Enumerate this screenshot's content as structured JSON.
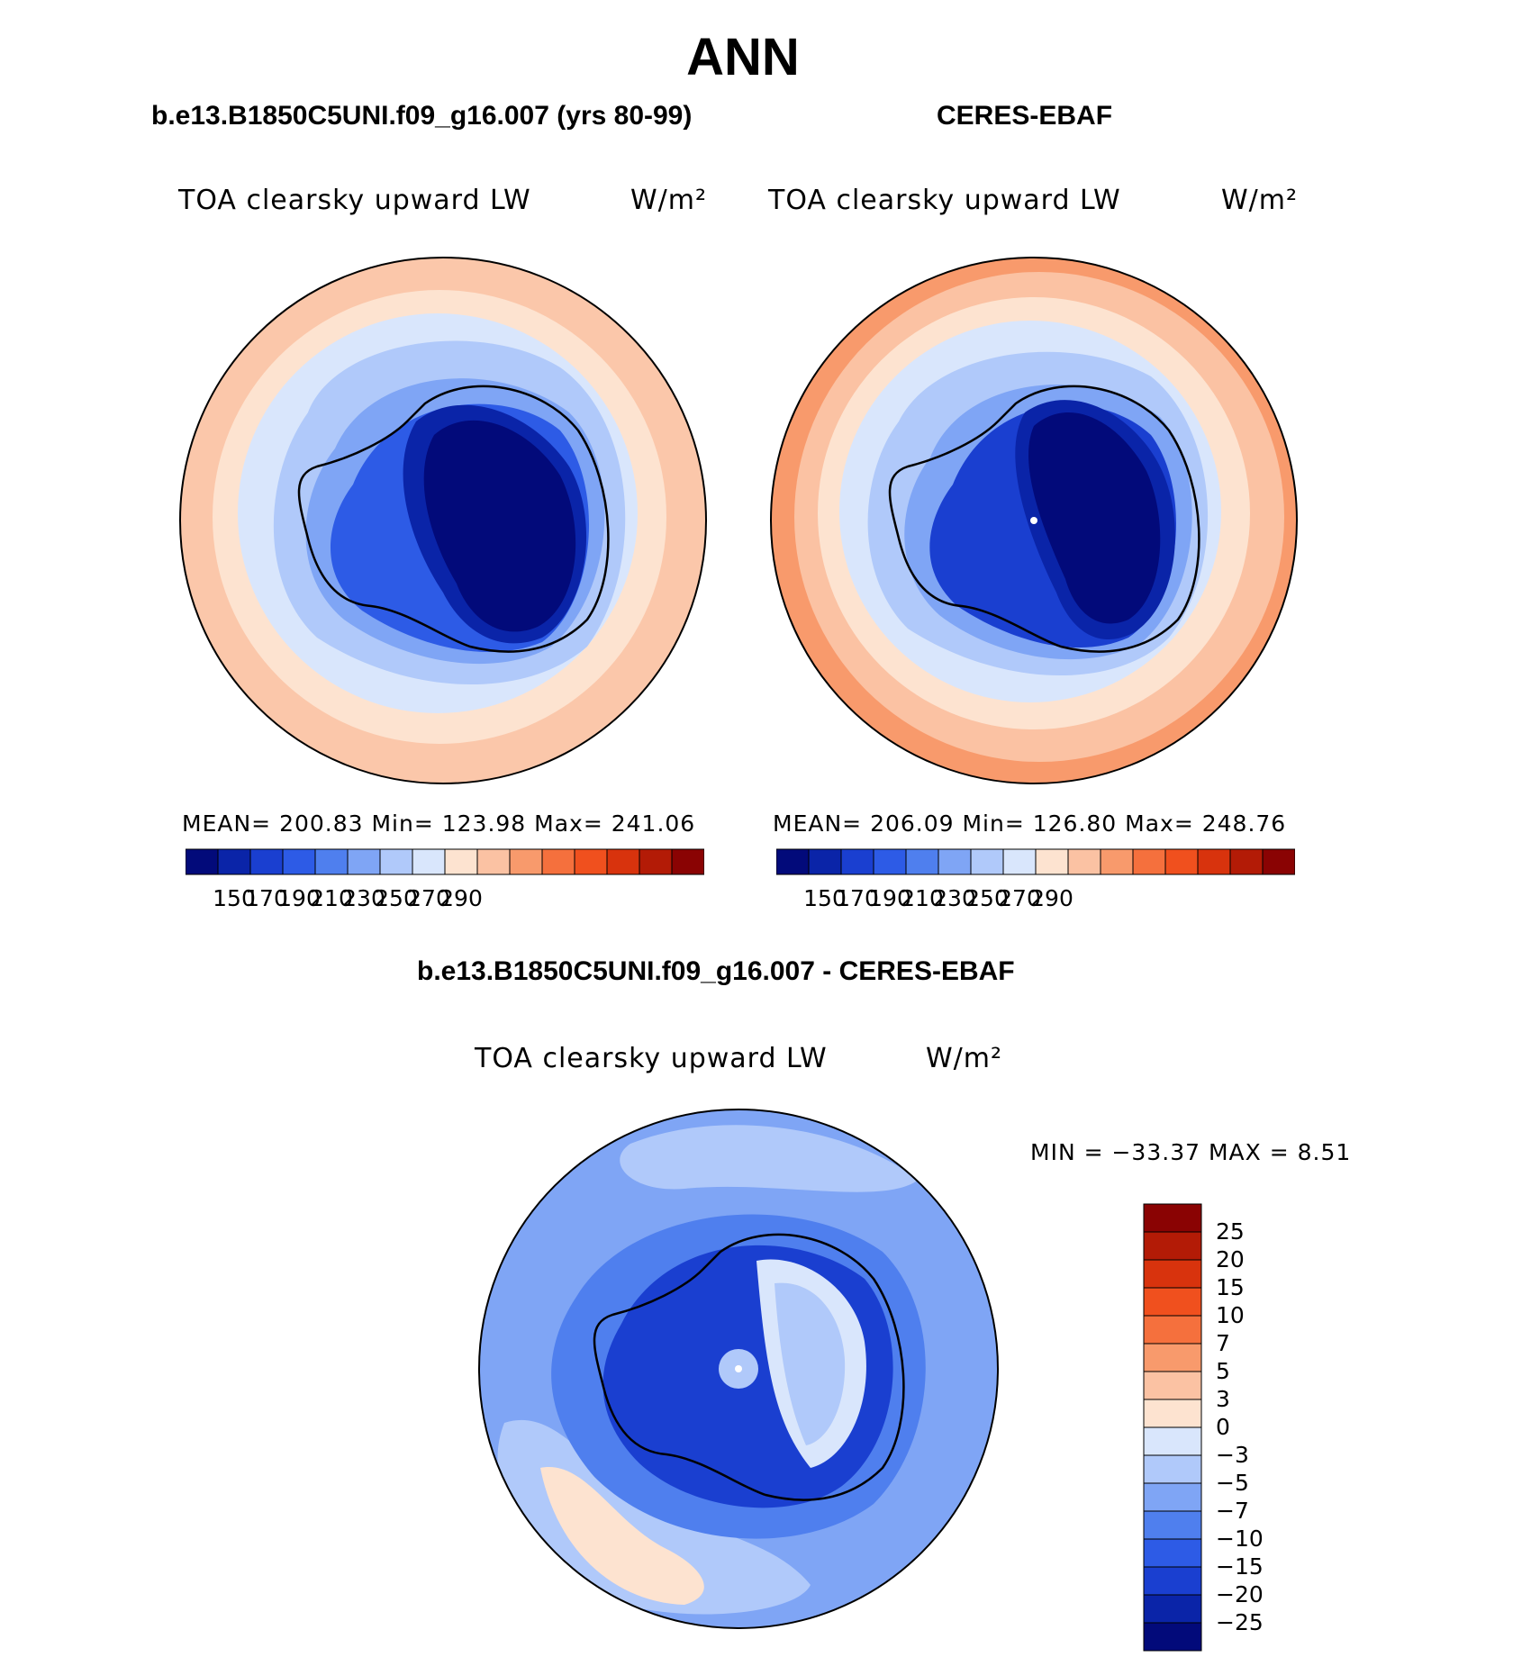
{
  "page_title": "ANN",
  "panels": [
    {
      "title": "b.e13.B1850C5UNI.f09_g16.007 (yrs 80-99)",
      "field_label": "TOA clearsky upward LW",
      "units": "W/m²",
      "stats": "MEAN= 200.83   Min= 123.98   Max= 241.06",
      "colorbar_ticks": [
        "150",
        "170",
        "190",
        "210",
        "230",
        "250",
        "270",
        "290"
      ]
    },
    {
      "title": "CERES-EBAF",
      "field_label": "TOA clearsky upward LW",
      "units": "W/m²",
      "stats": "MEAN= 206.09   Min= 126.80   Max= 248.76",
      "colorbar_ticks": [
        "150",
        "170",
        "190",
        "210",
        "230",
        "250",
        "270",
        "290"
      ]
    }
  ],
  "difference": {
    "title": "b.e13.B1850C5UNI.f09_g16.007 - CERES-EBAF",
    "field_label": "TOA clearsky upward LW",
    "units": "W/m²",
    "minmax": "MIN = −33.37 MAX =    8.51",
    "colorbar_ticks": [
      "25",
      "20",
      "15",
      "10",
      "7",
      "5",
      "3",
      "0",
      "−3",
      "−5",
      "−7",
      "−10",
      "−15",
      "−20",
      "−25"
    ]
  },
  "colors": {
    "absolute_scale": [
      "#020a7a",
      "#0a24a8",
      "#1a3fd0",
      "#2d5be6",
      "#4f7fee",
      "#7fa5f5",
      "#b0c9fa",
      "#d9e6fc",
      "#fde3d0",
      "#fbc2a3",
      "#f89a6c",
      "#f5703d",
      "#f0501e",
      "#d8330d",
      "#b31b06",
      "#8a0303"
    ],
    "difference_scale": [
      "#8a0303",
      "#b31b06",
      "#d8330d",
      "#f0501e",
      "#f5703d",
      "#f89a6c",
      "#fbc2a3",
      "#fde3d0",
      "#d9e6fc",
      "#b0c9fa",
      "#7fa5f5",
      "#4f7fee",
      "#2d5be6",
      "#1a3fd0",
      "#0a24a8",
      "#020a7a"
    ]
  }
}
